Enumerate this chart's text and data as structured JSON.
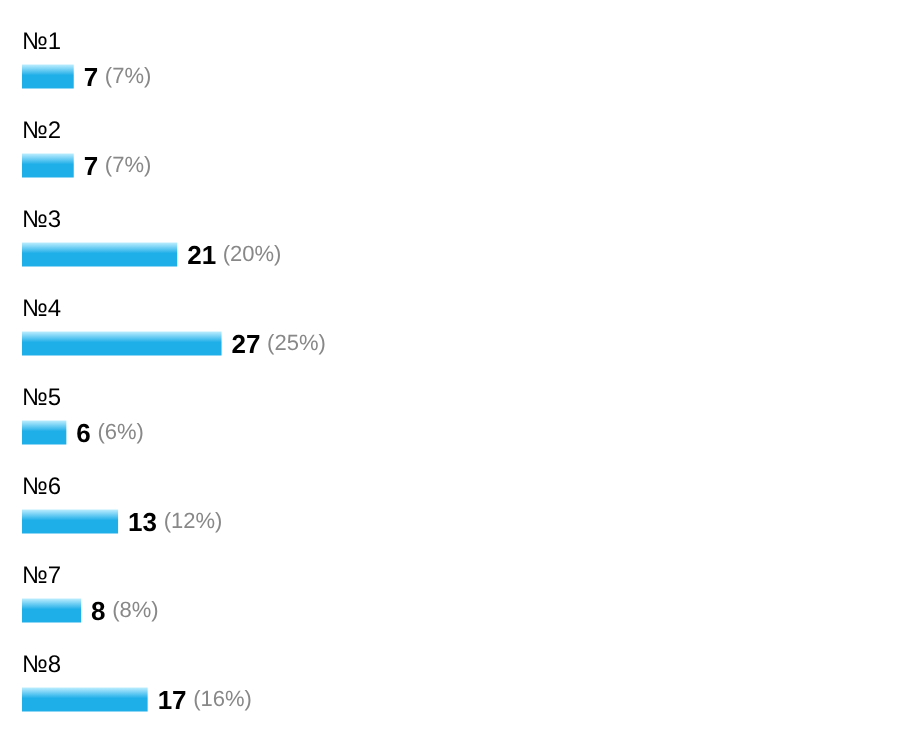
{
  "chart_data": {
    "type": "bar",
    "orientation": "horizontal",
    "categories": [
      "№1",
      "№2",
      "№3",
      "№4",
      "№5",
      "№6",
      "№7",
      "№8"
    ],
    "values": [
      7,
      7,
      21,
      27,
      6,
      13,
      8,
      17
    ],
    "value_labels": [
      "7 (7%)",
      "7 (7%)",
      "21 (20%)",
      "27 (25%)",
      "6 (6%)",
      "13 (12%)",
      "8 (8%)",
      "17 (16%)"
    ],
    "color": "#1eaee8"
  }
}
